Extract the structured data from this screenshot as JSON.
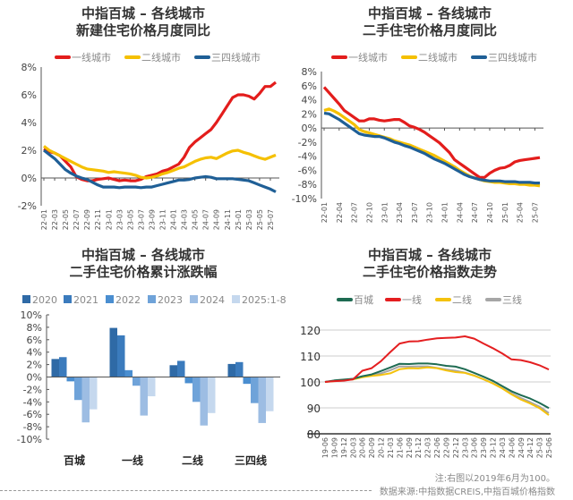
{
  "chart_data": [
    {
      "type": "line",
      "title": [
        "中指百城 – 各线城市",
        "新建住宅价格月度同比"
      ],
      "x_ticks": [
        "22-01",
        "22-03",
        "22-05",
        "22-07",
        "22-09",
        "22-11",
        "23-01",
        "23-03",
        "23-05",
        "23-07",
        "23-09",
        "23-11",
        "24-01",
        "24-03",
        "24-05",
        "24-07",
        "24-09",
        "24-11",
        "25-01",
        "25-03",
        "25-05",
        "25-07"
      ],
      "x_start": "2022-01",
      "x_end": "2025-08",
      "x_step": "monthly",
      "y_ticks": [
        "8%",
        "6%",
        "4%",
        "2%",
        "0%",
        "-2%"
      ],
      "ylim": [
        -2,
        8
      ],
      "unit": "%",
      "grid": false,
      "legend": "top",
      "series": [
        {
          "name": "一线城市",
          "color": "#e31d1c",
          "values": [
            2.1,
            1.9,
            1.8,
            1.6,
            1.2,
            0.8,
            0.1,
            -0.1,
            -0.2,
            -0.2,
            -0.1,
            -0.05,
            0,
            -0.1,
            -0.2,
            -0.15,
            -0.2,
            -0.2,
            -0.1,
            0.1,
            0.2,
            0.3,
            0.5,
            0.6,
            0.8,
            1.0,
            1.5,
            2.2,
            2.6,
            2.9,
            3.2,
            3.5,
            4.0,
            4.6,
            5.2,
            5.8,
            6.0,
            6.0,
            5.9,
            5.7,
            6.1,
            6.6,
            6.6,
            6.9
          ]
        },
        {
          "name": "二线城市",
          "color": "#f5c000",
          "values": [
            2.3,
            2.0,
            1.8,
            1.6,
            1.4,
            1.2,
            1.0,
            0.8,
            0.65,
            0.6,
            0.55,
            0.5,
            0.4,
            0.45,
            0.4,
            0.35,
            0.3,
            0.2,
            0.05,
            0.0,
            0.05,
            0.15,
            0.3,
            0.4,
            0.55,
            0.7,
            0.8,
            1.0,
            1.2,
            1.35,
            1.45,
            1.5,
            1.4,
            1.6,
            1.8,
            1.95,
            2.0,
            1.85,
            1.75,
            1.6,
            1.45,
            1.35,
            1.5,
            1.65
          ]
        },
        {
          "name": "三四线城市",
          "color": "#1f5f96",
          "values": [
            2.0,
            1.7,
            1.4,
            1.0,
            0.6,
            0.35,
            0.15,
            0.0,
            -0.1,
            -0.3,
            -0.5,
            -0.65,
            -0.65,
            -0.65,
            -0.7,
            -0.65,
            -0.65,
            -0.65,
            -0.7,
            -0.65,
            -0.65,
            -0.55,
            -0.45,
            -0.35,
            -0.25,
            -0.15,
            -0.15,
            -0.1,
            0.0,
            0.05,
            0.1,
            0.05,
            -0.05,
            -0.05,
            -0.05,
            -0.05,
            -0.1,
            -0.15,
            -0.2,
            -0.35,
            -0.5,
            -0.65,
            -0.8,
            -1.0
          ]
        }
      ]
    },
    {
      "type": "line",
      "title": [
        "中指百城 – 各线城市",
        "二手住宅价格月度同比"
      ],
      "x_ticks": [
        "22-01",
        "22-04",
        "22-07",
        "22-10",
        "23-01",
        "23-04",
        "23-07",
        "23-10",
        "24-01",
        "24-04",
        "24-07",
        "24-10",
        "25-01",
        "25-04",
        "25-07"
      ],
      "x_start": "2022-01",
      "x_end": "2025-08",
      "x_step": "monthly",
      "y_ticks": [
        "8%",
        "6%",
        "4%",
        "2%",
        "0%",
        "-2%",
        "-4%",
        "-6%",
        "-8%",
        "-10%"
      ],
      "ylim": [
        -10,
        8
      ],
      "unit": "%",
      "grid": false,
      "legend": "top",
      "series": [
        {
          "name": "一线城市",
          "color": "#e31d1c",
          "values": [
            5.8,
            5.0,
            4.2,
            3.4,
            2.5,
            2.0,
            1.5,
            1.0,
            1.0,
            1.3,
            1.3,
            1.1,
            1.0,
            1.1,
            1.2,
            1.2,
            0.8,
            0.3,
            0.1,
            -0.2,
            -0.6,
            -1.1,
            -1.6,
            -2.1,
            -2.8,
            -3.5,
            -4.5,
            -5.0,
            -5.5,
            -6.0,
            -6.5,
            -7.0,
            -7.0,
            -6.4,
            -6.0,
            -5.7,
            -5.6,
            -5.3,
            -4.8,
            -4.6,
            -4.5,
            -4.4,
            -4.3,
            -4.2
          ]
        },
        {
          "name": "二线城市",
          "color": "#f5c000",
          "values": [
            2.5,
            2.7,
            2.4,
            2.0,
            1.5,
            1.0,
            0.5,
            -0.2,
            -0.5,
            -0.7,
            -0.9,
            -1.1,
            -1.3,
            -1.5,
            -1.8,
            -2.0,
            -2.2,
            -2.4,
            -2.7,
            -3.0,
            -3.3,
            -3.6,
            -3.9,
            -4.3,
            -4.7,
            -5.1,
            -5.5,
            -6.0,
            -6.4,
            -6.8,
            -7.1,
            -7.3,
            -7.5,
            -7.6,
            -7.7,
            -7.7,
            -7.8,
            -7.9,
            -7.9,
            -8.0,
            -8.0,
            -8.1,
            -8.1,
            -8.2
          ]
        },
        {
          "name": "三四线城市",
          "color": "#1f5f96",
          "values": [
            2.1,
            2.0,
            1.6,
            1.2,
            0.7,
            0.2,
            -0.3,
            -0.8,
            -1.0,
            -1.1,
            -1.2,
            -1.2,
            -1.4,
            -1.7,
            -2.0,
            -2.2,
            -2.5,
            -2.7,
            -3.0,
            -3.3,
            -3.6,
            -4.0,
            -4.4,
            -4.7,
            -5.0,
            -5.4,
            -5.8,
            -6.2,
            -6.6,
            -6.9,
            -7.1,
            -7.3,
            -7.4,
            -7.5,
            -7.5,
            -7.5,
            -7.6,
            -7.6,
            -7.6,
            -7.7,
            -7.7,
            -7.7,
            -7.8,
            -7.8
          ]
        }
      ]
    },
    {
      "type": "bar",
      "title": [
        "中指百城 – 各线城市",
        "二手住宅价格累计涨跌幅"
      ],
      "categories": [
        "百城",
        "一线",
        "二线",
        "三四线"
      ],
      "y_ticks": [
        "10%",
        "8%",
        "6%",
        "4%",
        "2%",
        "0%",
        "-2%",
        "-4%",
        "-6%",
        "-8%",
        "-10%"
      ],
      "ylim": [
        -10,
        10
      ],
      "unit": "%",
      "grid": false,
      "legend": "top",
      "series": [
        {
          "name": "2020",
          "color": "#2f6aa6",
          "values": [
            2.9,
            7.9,
            1.9,
            2.1
          ]
        },
        {
          "name": "2021",
          "color": "#3b7bbd",
          "values": [
            3.2,
            6.7,
            2.6,
            2.4
          ]
        },
        {
          "name": "2022",
          "color": "#4a8ed0",
          "values": [
            -0.7,
            1.1,
            -1.0,
            -1.1
          ]
        },
        {
          "name": "2023",
          "color": "#6fa3d9",
          "values": [
            -3.7,
            -1.4,
            -4.0,
            -4.2
          ]
        },
        {
          "name": "2024",
          "color": "#9dbde3",
          "values": [
            -7.3,
            -6.2,
            -7.8,
            -7.4
          ]
        },
        {
          "name": "2025:1-8",
          "color": "#c5d8ee",
          "values": [
            -5.2,
            -3.1,
            -5.8,
            -5.5
          ]
        }
      ]
    },
    {
      "type": "line",
      "title": [
        "中指百城 – 各线城市",
        "二手住宅价格指数走势"
      ],
      "x": [
        "19-06",
        "19-09",
        "19-12",
        "20-03",
        "20-06",
        "20-09",
        "20-12",
        "21-03",
        "21-06",
        "21-09",
        "21-12",
        "22-03",
        "22-06",
        "22-09",
        "22-12",
        "23-03",
        "23-06",
        "23-09",
        "23-12",
        "24-03",
        "24-06",
        "24-09",
        "24-12",
        "25-03",
        "25-06"
      ],
      "y_ticks": [
        "120",
        "110",
        "100",
        "90",
        "80"
      ],
      "ylim": [
        80,
        120
      ],
      "grid": true,
      "legend": "top",
      "series": [
        {
          "name": "百城",
          "color": "#1e6b52",
          "values": [
            100,
            100.6,
            100.9,
            101.2,
            102.2,
            102.9,
            104.2,
            105.6,
            107.0,
            106.9,
            107.1,
            107.1,
            106.8,
            106.2,
            105.9,
            104.9,
            103.5,
            102.0,
            100.4,
            98.4,
            96.4,
            94.9,
            93.6,
            91.9,
            89.9
          ]
        },
        {
          "name": "一线",
          "color": "#e41e20",
          "values": [
            100,
            100.3,
            100.5,
            101.0,
            104.3,
            105.3,
            108.0,
            111.5,
            114.8,
            115.6,
            115.7,
            116.3,
            116.8,
            117.0,
            117.1,
            117.6,
            116.7,
            114.8,
            113.0,
            111.0,
            108.7,
            108.4,
            107.6,
            106.4,
            104.8
          ]
        },
        {
          "name": "二线",
          "color": "#f4c20d",
          "values": [
            100,
            100.3,
            100.6,
            101.0,
            101.8,
            102.3,
            102.7,
            103.3,
            104.9,
            105.3,
            105.2,
            105.6,
            105.3,
            104.4,
            103.8,
            103.5,
            102.4,
            101.0,
            99.4,
            97.5,
            95.2,
            93.2,
            91.7,
            89.9,
            87.2
          ]
        },
        {
          "name": "三线",
          "color": "#a6a6a6",
          "values": [
            100,
            100.5,
            100.8,
            101.0,
            102.0,
            102.6,
            103.3,
            104.5,
            106.0,
            105.9,
            106.0,
            106.0,
            105.4,
            104.8,
            104.3,
            103.6,
            102.5,
            101.0,
            99.5,
            97.6,
            95.6,
            93.8,
            92.2,
            90.5,
            88.0
          ]
        }
      ]
    }
  ],
  "notes": {
    "note": "注:右图以2019年6月为100。",
    "source": "数据来源:中指数据CREIS,中指百城价格指数"
  }
}
